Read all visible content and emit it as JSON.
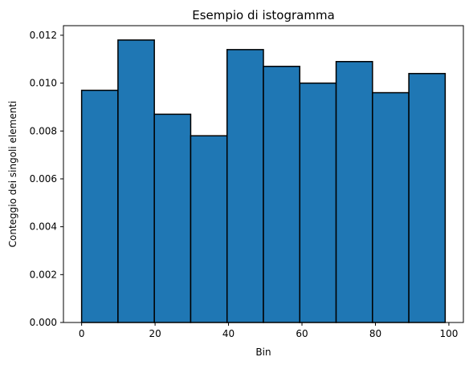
{
  "chart_data": {
    "type": "bar",
    "title": "Esempio di istogramma",
    "xlabel": "Bin",
    "ylabel": "Conteggio dei singoli elementi",
    "bin_edges": [
      0,
      9.9,
      19.8,
      29.7,
      39.6,
      49.5,
      59.4,
      69.3,
      79.2,
      89.1,
      99
    ],
    "values": [
      0.0097,
      0.0118,
      0.0087,
      0.0078,
      0.0114,
      0.0107,
      0.01,
      0.0109,
      0.0096,
      0.0104
    ],
    "xlim": [
      -4.95,
      103.95
    ],
    "ylim": [
      0,
      0.0124
    ],
    "xticks": [
      0,
      20,
      40,
      60,
      80,
      100
    ],
    "xtick_labels": [
      "0",
      "20",
      "40",
      "60",
      "80",
      "100"
    ],
    "yticks": [
      0,
      0.002,
      0.004,
      0.006,
      0.008,
      0.01,
      0.012
    ],
    "ytick_labels": [
      "0.000",
      "0.002",
      "0.004",
      "0.006",
      "0.008",
      "0.010",
      "0.012"
    ],
    "bar_color": "#1f77b4",
    "edge_color": "#000000",
    "grid": false
  }
}
